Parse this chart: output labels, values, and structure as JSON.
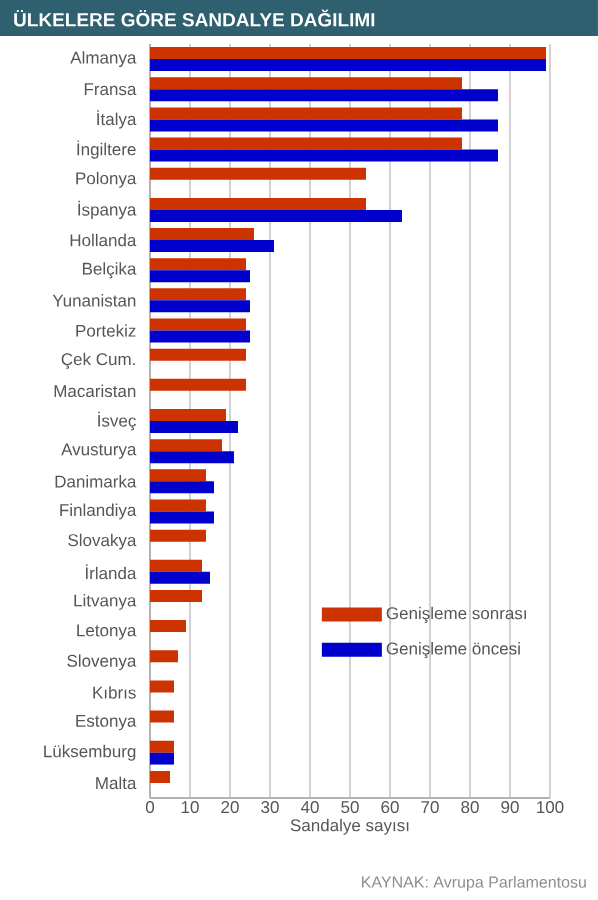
{
  "chart_data": {
    "type": "bar",
    "orientation": "horizontal",
    "title": "ÜLKELERE GÖRE SANDALYE DAĞILIMI",
    "xlabel": "Sandalye sayısı",
    "categories": [
      "Almanya",
      "Fransa",
      "İtalya",
      "İngiltere",
      "Polonya",
      "İspanya",
      "Hollanda",
      "Belçika",
      "Yunanistan",
      "Portekiz",
      "Çek Cum.",
      "Macaristan",
      "İsveç",
      "Avusturya",
      "Danimarka",
      "Finlandiya",
      "Slovakya",
      "İrlanda",
      "Litvanya",
      "Letonya",
      "Slovenya",
      "Kıbrıs",
      "Estonya",
      "Lüksemburg",
      "Malta"
    ],
    "series": [
      {
        "name": "Genişleme sonrası",
        "color": "#cc3300",
        "values": [
          99,
          78,
          78,
          78,
          54,
          54,
          26,
          24,
          24,
          24,
          24,
          24,
          19,
          18,
          14,
          14,
          14,
          13,
          13,
          9,
          7,
          6,
          6,
          6,
          5
        ]
      },
      {
        "name": "Genişleme  öncesi",
        "color": "#0000cc",
        "values": [
          99,
          87,
          87,
          87,
          null,
          63,
          31,
          25,
          25,
          25,
          null,
          null,
          22,
          21,
          16,
          16,
          null,
          15,
          null,
          null,
          null,
          null,
          null,
          6,
          null
        ]
      }
    ],
    "xlim": [
      0,
      100
    ],
    "xticks": [
      0,
      10,
      20,
      30,
      40,
      50,
      60,
      70,
      80,
      90,
      100
    ],
    "grid": "x",
    "legend": "right",
    "annotations": [
      "KAYNAK: Avrupa Parlamentosu"
    ]
  }
}
